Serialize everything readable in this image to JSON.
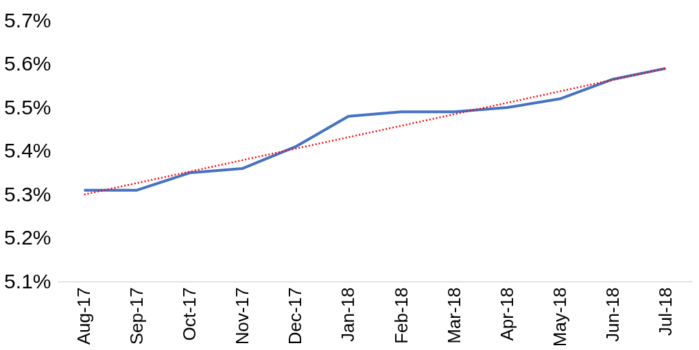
{
  "chart_data": {
    "type": "line",
    "categories": [
      "Aug-17",
      "Sep-17",
      "Oct-17",
      "Nov-17",
      "Dec-17",
      "Jan-18",
      "Feb-18",
      "Mar-18",
      "Apr-18",
      "May-18",
      "Jun-18",
      "Jul-18"
    ],
    "series": [
      {
        "color": "#4472c4",
        "values": [
          5.31,
          5.31,
          5.35,
          5.36,
          5.41,
          5.48,
          5.49,
          5.49,
          5.5,
          5.52,
          5.565,
          5.59
        ]
      },
      {
        "type": "line",
        "color": "#ff0000",
        "line_style": "dotted",
        "x": [
          "Aug-17",
          "Jul-18"
        ],
        "values": [
          5.3,
          5.59
        ]
      }
    ],
    "ylim": [
      5.1,
      5.7
    ],
    "yticks": [
      {
        "value": 5.1,
        "label": "5.1%"
      },
      {
        "value": 5.2,
        "label": "5.2%"
      },
      {
        "value": 5.3,
        "label": "5.3%"
      },
      {
        "value": 5.4,
        "label": "5.4%"
      },
      {
        "value": 5.5,
        "label": "5.5%"
      },
      {
        "value": 5.6,
        "label": "5.6%"
      },
      {
        "value": 5.7,
        "label": "5.7%"
      }
    ],
    "line_style": "solid"
  }
}
